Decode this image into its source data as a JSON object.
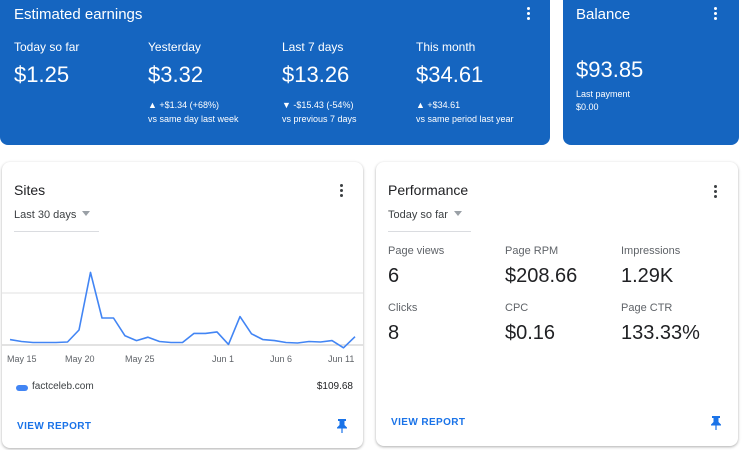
{
  "earnings": {
    "title": "Estimated earnings",
    "metrics": [
      {
        "label": "Today so far",
        "value": "$1.25",
        "change": "",
        "compare": ""
      },
      {
        "label": "Yesterday",
        "value": "$3.32",
        "change": "▲ +$1.34 (+68%)",
        "compare": "vs same day last week"
      },
      {
        "label": "Last 7 days",
        "value": "$13.26",
        "change": "▼ -$15.43 (-54%)",
        "compare": "vs previous 7 days"
      },
      {
        "label": "This month",
        "value": "$34.61",
        "change": "▲ +$34.61",
        "compare": "vs same period last year"
      }
    ]
  },
  "balance": {
    "title": "Balance",
    "value": "$93.85",
    "last_payment_label": "Last payment",
    "last_payment_value": "$0.00"
  },
  "sites": {
    "title": "Sites",
    "range": "Last 30 days",
    "x_ticks": [
      "May 15",
      "May 20",
      "May 25",
      "Jun 1",
      "Jun 6",
      "Jun 11"
    ],
    "site_name": "factceleb.com",
    "site_amount": "$109.68",
    "view_report": "VIEW REPORT"
  },
  "performance": {
    "title": "Performance",
    "range": "Today so far",
    "metrics": [
      {
        "label": "Page views",
        "value": "6"
      },
      {
        "label": "Page RPM",
        "value": "$208.66"
      },
      {
        "label": "Impressions",
        "value": "1.29K"
      },
      {
        "label": "Clicks",
        "value": "8"
      },
      {
        "label": "CPC",
        "value": "$0.16"
      },
      {
        "label": "Page CTR",
        "value": "133.33%"
      }
    ],
    "view_report": "VIEW REPORT"
  },
  "colors": {
    "brand_blue": "#1565c0",
    "link_blue": "#1a73e8",
    "line_blue": "#4285f4"
  },
  "chart_data": {
    "type": "line",
    "x": [
      "May 13",
      "May 14",
      "May 15",
      "May 16",
      "May 17",
      "May 18",
      "May 19",
      "May 20",
      "May 21",
      "May 22",
      "May 23",
      "May 24",
      "May 25",
      "May 26",
      "May 27",
      "May 28",
      "May 29",
      "May 30",
      "May 31",
      "Jun 1",
      "Jun 2",
      "Jun 3",
      "Jun 4",
      "Jun 5",
      "Jun 6",
      "Jun 7",
      "Jun 8",
      "Jun 9",
      "Jun 10",
      "Jun 11",
      "Jun 12"
    ],
    "series": [
      {
        "name": "factceleb.com",
        "values": [
          3.0,
          2.6,
          2.4,
          2.4,
          2.4,
          2.5,
          5.0,
          17.0,
          7.5,
          7.5,
          3.8,
          2.8,
          3.5,
          2.6,
          2.4,
          2.4,
          4.3,
          4.3,
          4.6,
          2.0,
          7.8,
          4.2,
          3.0,
          2.8,
          2.4,
          2.3,
          2.6,
          2.5,
          2.8,
          1.3,
          3.6
        ]
      }
    ],
    "ylim": [
      0,
      20
    ],
    "grid": true
  }
}
